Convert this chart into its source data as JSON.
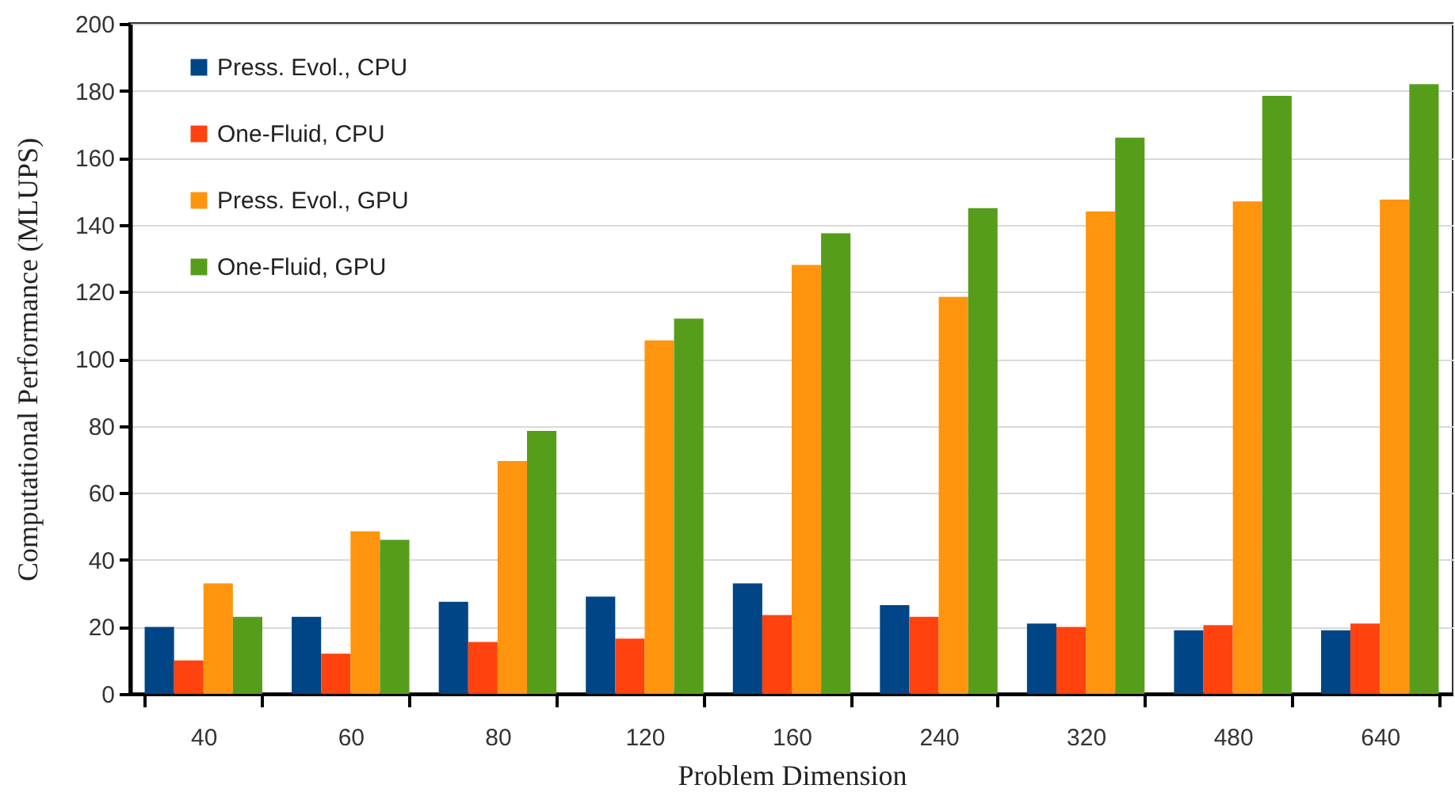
{
  "chart_data": {
    "type": "bar",
    "xlabel": "Problem Dimension",
    "ylabel": "Computational Performance (MLUPS)",
    "categories": [
      "40",
      "60",
      "80",
      "120",
      "160",
      "240",
      "320",
      "480",
      "640"
    ],
    "series": [
      {
        "name": "Press. Evol., CPU",
        "color": "#004586",
        "values": [
          20,
          23,
          27.5,
          29,
          33,
          26.5,
          21,
          19,
          19
        ]
      },
      {
        "name": "One-Fluid, CPU",
        "color": "#ff420e",
        "values": [
          10,
          12,
          15.5,
          16.5,
          23.5,
          23,
          20,
          20.5,
          21
        ]
      },
      {
        "name": "Press. Evol., GPU",
        "color": "#ff950e",
        "values": [
          33,
          48.5,
          69.5,
          105.5,
          128,
          118.5,
          144,
          147,
          147.5
        ]
      },
      {
        "name": "One-Fluid, GPU",
        "color": "#579d1c",
        "values": [
          23,
          46,
          78.5,
          112,
          137.5,
          145,
          166,
          178.5,
          182
        ]
      }
    ],
    "ylim": [
      0,
      200
    ],
    "yticks": [
      0,
      20,
      40,
      60,
      80,
      100,
      120,
      140,
      160,
      180,
      200
    ],
    "grid": "y",
    "legend": "top left"
  }
}
